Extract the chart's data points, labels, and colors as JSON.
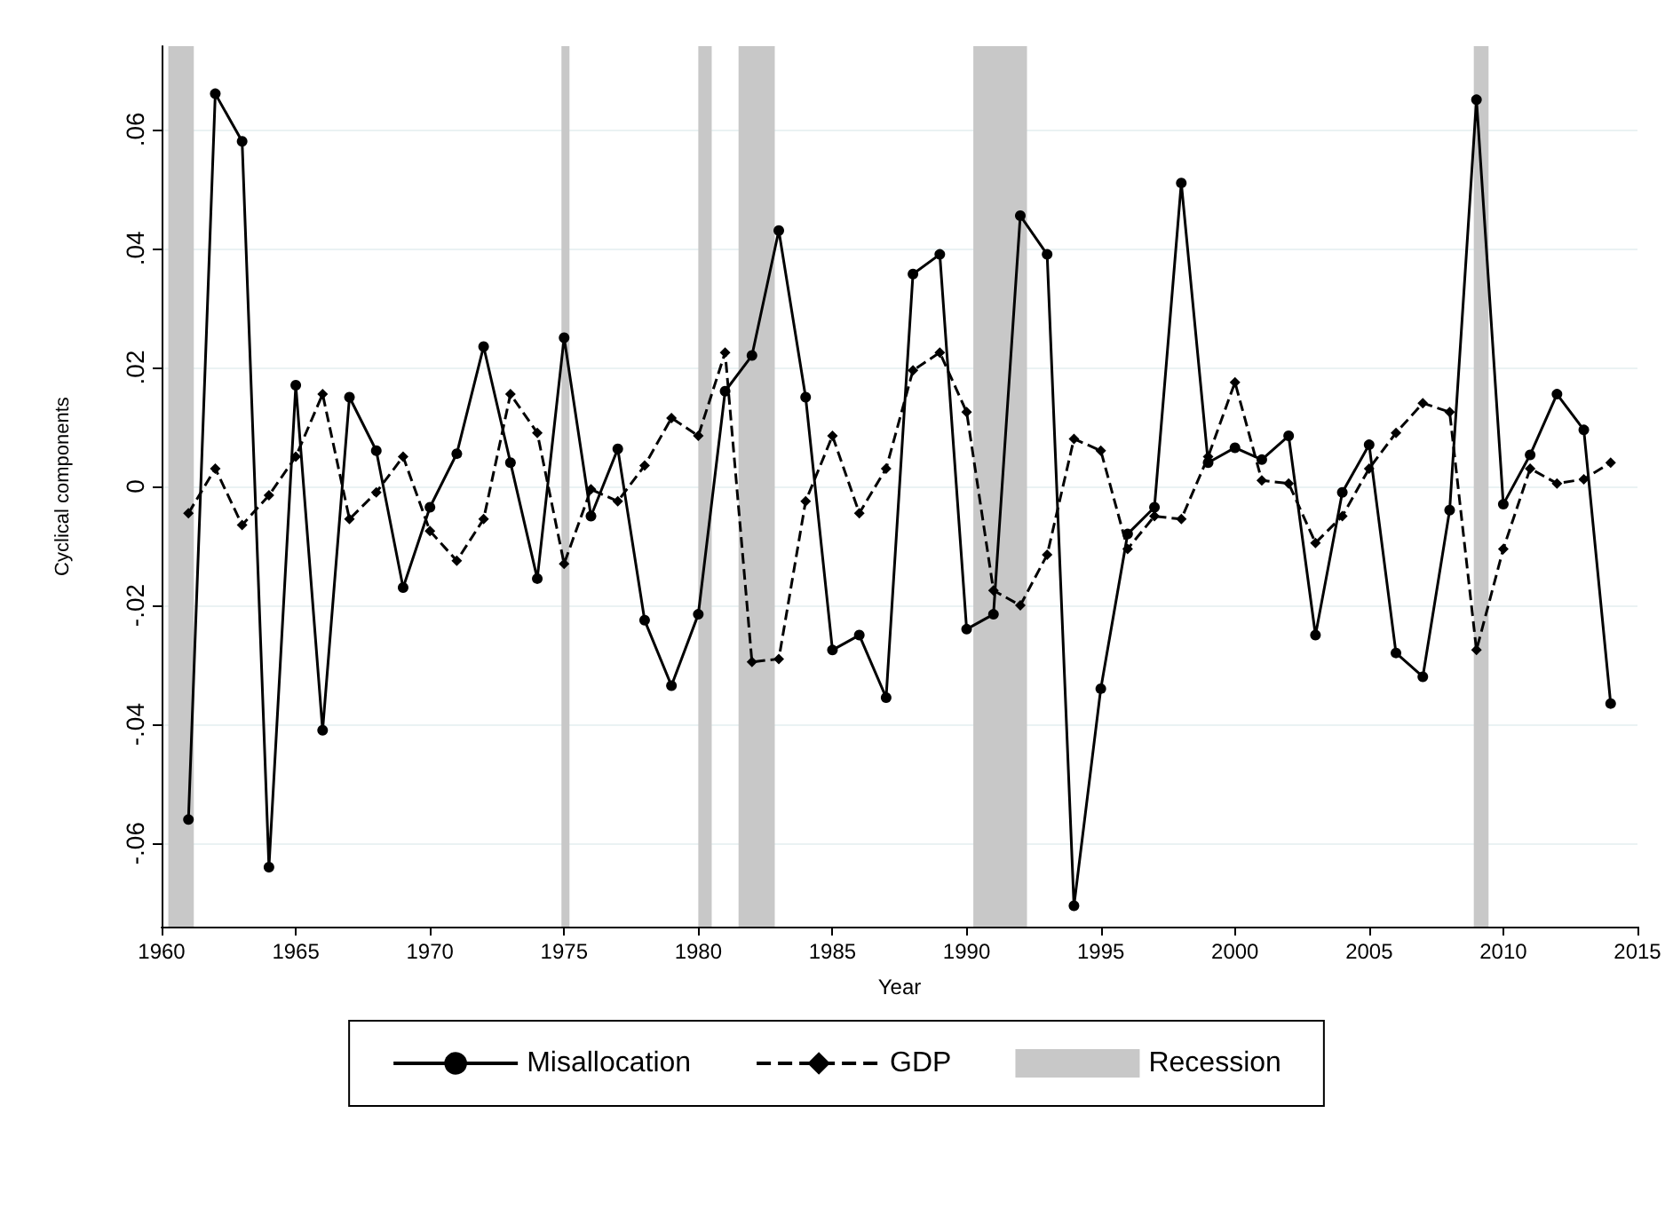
{
  "chart_data": {
    "type": "line",
    "xlabel": "Year",
    "ylabel": "Cyclical components",
    "x": [
      1961,
      1962,
      1963,
      1964,
      1965,
      1966,
      1967,
      1968,
      1969,
      1970,
      1971,
      1972,
      1973,
      1974,
      1975,
      1976,
      1977,
      1978,
      1979,
      1980,
      1981,
      1982,
      1983,
      1984,
      1985,
      1986,
      1987,
      1988,
      1989,
      1990,
      1991,
      1992,
      1993,
      1994,
      1995,
      1996,
      1997,
      1998,
      1999,
      2000,
      2001,
      2002,
      2003,
      2004,
      2005,
      2006,
      2007,
      2008,
      2009,
      2010,
      2011,
      2012,
      2013,
      2014
    ],
    "series": [
      {
        "name": "Misallocation",
        "color": "#000000",
        "marker": "circle",
        "line_style": "solid",
        "values": [
          -0.056,
          0.066,
          0.058,
          -0.064,
          0.017,
          -0.041,
          0.015,
          0.006,
          -0.017,
          -0.0035,
          0.0055,
          0.0235,
          0.004,
          -0.0155,
          0.025,
          -0.005,
          0.0063,
          -0.0225,
          -0.0335,
          -0.0215,
          0.016,
          0.022,
          0.043,
          0.015,
          -0.0275,
          -0.025,
          -0.0355,
          0.0357,
          0.039,
          -0.024,
          -0.0215,
          0.0455,
          0.039,
          -0.0705,
          -0.034,
          -0.008,
          -0.0035,
          0.051,
          0.004,
          0.0065,
          0.0045,
          0.0085,
          -0.025,
          -0.001,
          0.007,
          -0.028,
          -0.032,
          -0.004,
          0.065,
          -0.003,
          0.0053,
          0.0155,
          0.0095,
          -0.0365
        ]
      },
      {
        "name": "GDP",
        "color": "#000000",
        "marker": "diamond",
        "line_style": "dashed",
        "values": [
          -0.0045,
          0.003,
          -0.0065,
          -0.0015,
          0.005,
          0.0155,
          -0.0055,
          -0.001,
          0.005,
          -0.0075,
          -0.0125,
          -0.0055,
          0.0155,
          0.009,
          -0.013,
          -0.0005,
          -0.0025,
          0.0035,
          0.0115,
          0.0085,
          0.0225,
          -0.0295,
          -0.029,
          -0.0025,
          0.0085,
          -0.0045,
          0.003,
          0.0195,
          0.0225,
          0.0125,
          -0.0175,
          -0.02,
          -0.0115,
          0.008,
          0.006,
          -0.0105,
          -0.005,
          -0.0055,
          0.005,
          0.0175,
          0.001,
          0.0005,
          -0.0095,
          -0.005,
          0.003,
          0.009,
          0.014,
          0.0125,
          -0.0275,
          -0.0105,
          0.003,
          0.0005,
          0.0012,
          0.004
        ]
      }
    ],
    "bands": [
      {
        "axis": "x",
        "from": 1960.25,
        "to": 1961.2,
        "label": "Recession",
        "color": "#c8c8c8"
      },
      {
        "axis": "x",
        "from": 1974.9,
        "to": 1975.2,
        "color": "#c8c8c8"
      },
      {
        "axis": "x",
        "from": 1980.0,
        "to": 1980.5,
        "color": "#c8c8c8"
      },
      {
        "axis": "x",
        "from": 1981.5,
        "to": 1982.85,
        "color": "#c8c8c8"
      },
      {
        "axis": "x",
        "from": 1990.25,
        "to": 1992.25,
        "color": "#c8c8c8"
      },
      {
        "axis": "x",
        "from": 2008.9,
        "to": 2009.45,
        "color": "#c8c8c8"
      }
    ],
    "xlim": [
      1960,
      2015
    ],
    "xticks": [
      1960,
      1965,
      1970,
      1975,
      1980,
      1985,
      1990,
      1995,
      2000,
      2005,
      2010,
      2015
    ],
    "ylim": [
      -0.074,
      0.074
    ],
    "yticks": [
      {
        "value": -0.06,
        "label": "-.06"
      },
      {
        "value": -0.04,
        "label": "-.04"
      },
      {
        "value": -0.02,
        "label": "-.02"
      },
      {
        "value": 0,
        "label": "0"
      },
      {
        "value": 0.02,
        "label": ".02"
      },
      {
        "value": 0.04,
        "label": ".04"
      },
      {
        "value": 0.06,
        "label": ".06"
      }
    ],
    "grid": "y",
    "legend": "bottom"
  }
}
